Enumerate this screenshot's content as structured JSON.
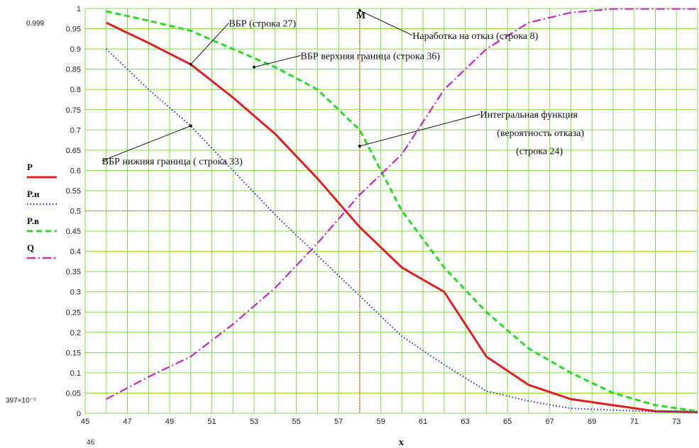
{
  "chart_data": {
    "type": "line",
    "x_ticks": [
      45,
      47,
      49,
      51,
      53,
      55,
      57,
      59,
      61,
      63,
      65,
      67,
      69,
      71,
      73
    ],
    "y_ticks": [
      0,
      0.05,
      0.1,
      0.15,
      0.2,
      0.25,
      0.3,
      0.35,
      0.4,
      0.45,
      0.5,
      0.55,
      0.6,
      0.65,
      0.7,
      0.75,
      0.8,
      0.85,
      0.9,
      0.95,
      1
    ],
    "y_tick_labels": [
      "0",
      "0.05",
      "0.1",
      "0.15",
      "0.2",
      "0.25",
      "0.3",
      "0.35",
      "0.4",
      "0.45",
      "0.5",
      "0.55",
      "0.6",
      "0.65",
      "0.7",
      "0.75",
      "0.8",
      "0.85",
      "0.9",
      "0.95",
      "1"
    ],
    "xlim": [
      45,
      74
    ],
    "ylim": [
      0,
      1
    ],
    "grid": true,
    "grid_color": "#7fe03f",
    "xlabel": "x",
    "ylabel": "",
    "left_top_value": "0.999",
    "left_bottom_value": "397×10⁻⁵",
    "bottom_left_value": "46",
    "legend_position": "left",
    "series": [
      {
        "name": "P",
        "color": "#e02020",
        "style": "solid",
        "x": [
          46,
          48,
          50,
          52,
          54,
          56,
          58,
          60,
          62,
          64,
          66,
          68,
          70,
          72,
          74
        ],
        "y": [
          0.965,
          0.915,
          0.862,
          0.78,
          0.69,
          0.58,
          0.46,
          0.36,
          0.3,
          0.14,
          0.07,
          0.035,
          0.02,
          0.005,
          0.003
        ]
      },
      {
        "name": "P.н",
        "color": "#2a2ad8",
        "style": "dotted",
        "x": [
          46,
          48,
          50,
          52,
          54,
          56,
          58,
          60,
          62,
          64,
          66,
          68,
          70,
          72,
          74
        ],
        "y": [
          0.9,
          0.8,
          0.71,
          0.6,
          0.49,
          0.39,
          0.29,
          0.19,
          0.12,
          0.055,
          0.03,
          0.012,
          0.008,
          0.004,
          0.003
        ]
      },
      {
        "name": "P.в",
        "color": "#22dd22",
        "style": "dashed",
        "x": [
          46,
          48,
          50,
          52,
          54,
          56,
          58,
          60,
          62,
          64,
          66,
          68,
          70,
          72,
          74
        ],
        "y": [
          0.993,
          0.97,
          0.945,
          0.9,
          0.855,
          0.8,
          0.7,
          0.5,
          0.36,
          0.25,
          0.16,
          0.1,
          0.05,
          0.02,
          0.005
        ]
      },
      {
        "name": "Q",
        "color": "#cc22cc",
        "style": "dashdot",
        "x": [
          46,
          48,
          50,
          52,
          54,
          56,
          58,
          60,
          62,
          64,
          66,
          68,
          70,
          72,
          74
        ],
        "y": [
          0.035,
          0.09,
          0.14,
          0.22,
          0.31,
          0.42,
          0.54,
          0.64,
          0.8,
          0.9,
          0.965,
          0.99,
          0.999,
          0.999,
          0.999
        ]
      }
    ],
    "hline": {
      "y": 0.5,
      "color": "#d07a1a"
    },
    "vline": {
      "x": 58,
      "color": "#e04040",
      "label": "M"
    },
    "annotations": [
      {
        "text": "ВБР (строка 27)",
        "point": [
          50,
          0.862
        ],
        "text_at": [
          51.8,
          0.955
        ]
      },
      {
        "text": "ВБР верхняя граница (строка 36)",
        "point": [
          53,
          0.855
        ],
        "text_at": [
          55.2,
          0.875
        ]
      },
      {
        "text": "Наработка на отказ (строка 8)",
        "point": [
          58,
          0.995
        ],
        "text_at": [
          60.5,
          0.925
        ]
      },
      {
        "text": "Интегральная функция",
        "point": [
          58,
          0.66
        ],
        "text_at": [
          63.7,
          0.73
        ]
      },
      {
        "text": "(вероятность отказа)",
        "point": null,
        "text_at": [
          64.5,
          0.685
        ]
      },
      {
        "text": "(строка 24)",
        "point": null,
        "text_at": [
          65.4,
          0.64
        ]
      },
      {
        "text": "ВБР нижняя граница ( строка 33)",
        "point": [
          50,
          0.71
        ],
        "text_at": [
          45.8,
          0.615
        ]
      }
    ]
  }
}
